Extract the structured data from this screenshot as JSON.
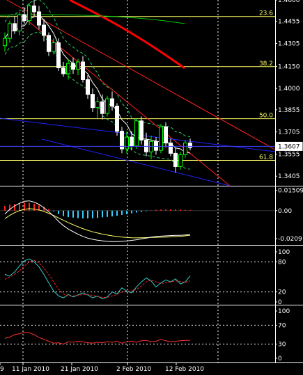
{
  "colors": {
    "background": "#000000",
    "grid": "#ffffff",
    "bull_candle": "#00ff00",
    "bear_candle": "#ffffff",
    "fib": "#ffff66",
    "red_channel": "#ff2020",
    "blue_channel": "#2020ff",
    "current_price": "#4040ff",
    "ma_long": "#ff0000",
    "ma_mid": "#00cc00",
    "ma_short": "#ffffff",
    "bands": "#33cc66",
    "macd_signal": "#ffff66",
    "macd_main": "#ffffff",
    "hist_pos": "#ff2020",
    "hist_neg": "#33ccff",
    "stoch_main": "#33cccc",
    "stoch_signal": "#ff2020",
    "rsi": "#ff3030"
  },
  "chart_data": {
    "type": "candlestick",
    "instrument_note": "",
    "x_ticks": [
      "9",
      "11 Jan 2010",
      "21 Jan 2010",
      "2 Feb 2010",
      "12 Feb 2010"
    ],
    "price_axis": {
      "range": [
        1.334,
        1.46
      ],
      "ticks": [
        "1.4600",
        "1.4455",
        "1.4305",
        "1.4150",
        "1.4000",
        "1.3855",
        "1.3705",
        "1.3555",
        "1.3405"
      ],
      "current_price": "1.3607"
    },
    "fib_levels": [
      {
        "label": "23.6",
        "price": 1.4488
      },
      {
        "label": "38.2",
        "price": 1.4148
      },
      {
        "label": "50.0",
        "price": 1.3795
      },
      {
        "label": "61.8",
        "price": 1.3512
      }
    ],
    "candles": [
      {
        "o": 1.429,
        "h": 1.438,
        "l": 1.425,
        "c": 1.434
      },
      {
        "o": 1.434,
        "h": 1.446,
        "l": 1.431,
        "c": 1.444
      },
      {
        "o": 1.444,
        "h": 1.449,
        "l": 1.437,
        "c": 1.439
      },
      {
        "o": 1.439,
        "h": 1.452,
        "l": 1.436,
        "c": 1.45
      },
      {
        "o": 1.45,
        "h": 1.455,
        "l": 1.444,
        "c": 1.446
      },
      {
        "o": 1.446,
        "h": 1.458,
        "l": 1.443,
        "c": 1.456
      },
      {
        "o": 1.456,
        "h": 1.461,
        "l": 1.449,
        "c": 1.452
      },
      {
        "o": 1.452,
        "h": 1.456,
        "l": 1.44,
        "c": 1.443
      },
      {
        "o": 1.443,
        "h": 1.447,
        "l": 1.432,
        "c": 1.436
      },
      {
        "o": 1.436,
        "h": 1.438,
        "l": 1.422,
        "c": 1.425
      },
      {
        "o": 1.425,
        "h": 1.434,
        "l": 1.423,
        "c": 1.431
      },
      {
        "o": 1.431,
        "h": 1.434,
        "l": 1.412,
        "c": 1.414
      },
      {
        "o": 1.414,
        "h": 1.418,
        "l": 1.408,
        "c": 1.41
      },
      {
        "o": 1.41,
        "h": 1.42,
        "l": 1.406,
        "c": 1.417
      },
      {
        "o": 1.417,
        "h": 1.421,
        "l": 1.41,
        "c": 1.413
      },
      {
        "o": 1.413,
        "h": 1.42,
        "l": 1.409,
        "c": 1.418
      },
      {
        "o": 1.418,
        "h": 1.422,
        "l": 1.404,
        "c": 1.406
      },
      {
        "o": 1.406,
        "h": 1.409,
        "l": 1.393,
        "c": 1.396
      },
      {
        "o": 1.396,
        "h": 1.4,
        "l": 1.384,
        "c": 1.387
      },
      {
        "o": 1.387,
        "h": 1.394,
        "l": 1.38,
        "c": 1.391
      },
      {
        "o": 1.391,
        "h": 1.396,
        "l": 1.379,
        "c": 1.383
      },
      {
        "o": 1.383,
        "h": 1.395,
        "l": 1.381,
        "c": 1.393
      },
      {
        "o": 1.393,
        "h": 1.398,
        "l": 1.385,
        "c": 1.388
      },
      {
        "o": 1.388,
        "h": 1.39,
        "l": 1.368,
        "c": 1.371
      },
      {
        "o": 1.371,
        "h": 1.374,
        "l": 1.356,
        "c": 1.359
      },
      {
        "o": 1.359,
        "h": 1.371,
        "l": 1.356,
        "c": 1.367
      },
      {
        "o": 1.367,
        "h": 1.371,
        "l": 1.358,
        "c": 1.361
      },
      {
        "o": 1.361,
        "h": 1.38,
        "l": 1.359,
        "c": 1.378
      },
      {
        "o": 1.378,
        "h": 1.381,
        "l": 1.362,
        "c": 1.365
      },
      {
        "o": 1.365,
        "h": 1.37,
        "l": 1.354,
        "c": 1.357
      },
      {
        "o": 1.357,
        "h": 1.368,
        "l": 1.352,
        "c": 1.364
      },
      {
        "o": 1.364,
        "h": 1.367,
        "l": 1.355,
        "c": 1.358
      },
      {
        "o": 1.358,
        "h": 1.376,
        "l": 1.356,
        "c": 1.374
      },
      {
        "o": 1.374,
        "h": 1.377,
        "l": 1.36,
        "c": 1.363
      },
      {
        "o": 1.363,
        "h": 1.366,
        "l": 1.354,
        "c": 1.356
      },
      {
        "o": 1.356,
        "h": 1.36,
        "l": 1.343,
        "c": 1.347
      },
      {
        "o": 1.347,
        "h": 1.357,
        "l": 1.345,
        "c": 1.355
      },
      {
        "o": 1.355,
        "h": 1.365,
        "l": 1.353,
        "c": 1.363
      },
      {
        "o": 1.363,
        "h": 1.366,
        "l": 1.358,
        "c": 1.36
      }
    ],
    "macd": {
      "axis_ticks": [
        "0.01509",
        "0.00",
        "-0.0209"
      ],
      "range": [
        -0.024,
        0.0165
      ],
      "histogram": [
        0.0035,
        0.0045,
        0.005,
        0.0055,
        0.006,
        0.0058,
        0.0052,
        0.0042,
        0.0028,
        0.0012,
        -0.0005,
        -0.0025,
        -0.004,
        -0.0048,
        -0.0052,
        -0.0056,
        -0.0058,
        -0.0058,
        -0.0056,
        -0.0054,
        -0.005,
        -0.0047,
        -0.0043,
        -0.0038,
        -0.0032,
        -0.0026,
        -0.002,
        -0.0014,
        -0.0009,
        -0.0004,
        0.0002,
        0.0006,
        0.0008,
        0.0009,
        0.001,
        0.001,
        0.0008,
        0.0006,
        0.0004
      ],
      "signal": [
        -0.006,
        -0.0035,
        -0.0015,
        0.0,
        0.001,
        0.0015,
        0.0012,
        0.0005,
        -0.0006,
        -0.002,
        -0.0036,
        -0.0054,
        -0.0072,
        -0.0089,
        -0.0105,
        -0.012,
        -0.0134,
        -0.0147,
        -0.0158,
        -0.0167,
        -0.0175,
        -0.0182,
        -0.0188,
        -0.0193,
        -0.0197,
        -0.02,
        -0.0202,
        -0.0203,
        -0.0202,
        -0.0201,
        -0.02,
        -0.0199,
        -0.0198,
        -0.0197,
        -0.0196,
        -0.0194,
        -0.0192,
        -0.0188,
        -0.0183
      ],
      "main": [
        -0.0025,
        0.001,
        0.0035,
        0.0055,
        0.007,
        0.0073,
        0.0064,
        0.0047,
        0.0022,
        -0.0008,
        -0.0041,
        -0.0079,
        -0.0112,
        -0.0137,
        -0.0157,
        -0.0176,
        -0.0192,
        -0.0205,
        -0.0214,
        -0.0221,
        -0.0225,
        -0.0229,
        -0.0231,
        -0.0231,
        -0.0229,
        -0.0226,
        -0.0222,
        -0.0217,
        -0.0211,
        -0.0205,
        -0.0198,
        -0.0193,
        -0.019,
        -0.0188,
        -0.0186,
        -0.0184,
        -0.0184,
        -0.0182,
        -0.0179
      ]
    },
    "stochastic": {
      "axis_ticks": [
        "100",
        "80",
        "20",
        "0"
      ],
      "range": [
        0,
        100
      ],
      "main": [
        55,
        52,
        60,
        72,
        82,
        86,
        80,
        70,
        55,
        38,
        22,
        12,
        8,
        15,
        10,
        14,
        18,
        14,
        8,
        12,
        6,
        10,
        20,
        16,
        28,
        22,
        18,
        30,
        40,
        48,
        42,
        30,
        38,
        44,
        40,
        46,
        36,
        40,
        52
      ],
      "signal": [
        45,
        50,
        55,
        62,
        72,
        80,
        83,
        78,
        68,
        55,
        40,
        26,
        16,
        12,
        12,
        13,
        15,
        15,
        13,
        11,
        9,
        9,
        12,
        15,
        20,
        22,
        22,
        25,
        32,
        40,
        44,
        40,
        37,
        38,
        40,
        42,
        41,
        39,
        42
      ]
    },
    "rsi": {
      "axis_ticks": [
        "100",
        "70",
        "30",
        "0"
      ],
      "range": [
        0,
        100
      ],
      "values": [
        42,
        45,
        50,
        52,
        55,
        54,
        50,
        44,
        40,
        36,
        32,
        33,
        30,
        35,
        34,
        36,
        35,
        33,
        32,
        34,
        33,
        35,
        34,
        36,
        32,
        35,
        36,
        34,
        37,
        38,
        35,
        36,
        40,
        37,
        35,
        36,
        37,
        38,
        38
      ]
    }
  }
}
